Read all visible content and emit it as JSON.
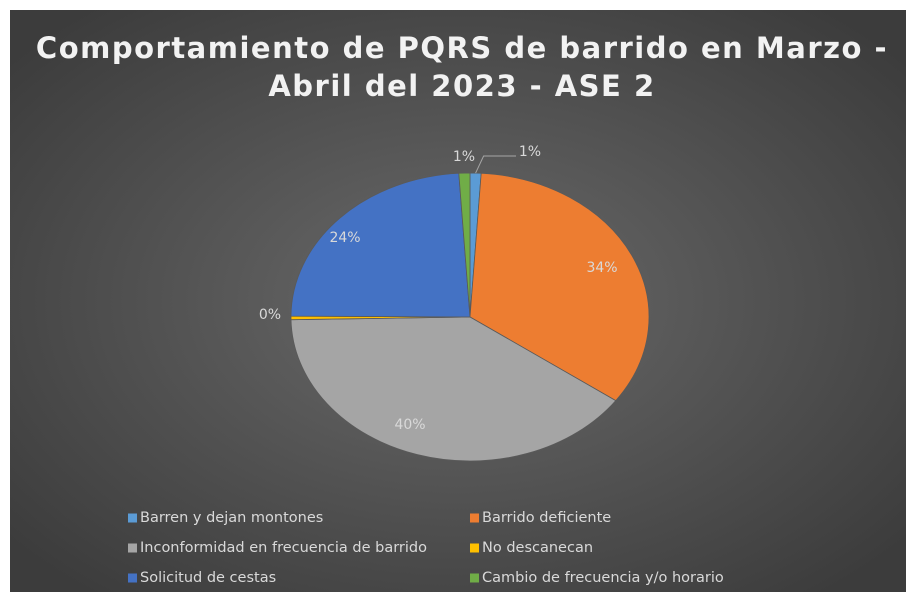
{
  "chart_data": {
    "type": "pie",
    "title": [
      "Comportamiento de PQRS de barrido en Marzo -",
      "Abril del 2023 - ASE 2"
    ],
    "categories": [
      "Barren y dejan montones",
      "Barrido deficiente",
      "Inconformidad en frecuencia de barrido",
      "No descanecan",
      "Solicitud de cestas",
      "Cambio de frecuencia y/o horario"
    ],
    "values": [
      1,
      34,
      40,
      0.4,
      24,
      1
    ],
    "value_labels": [
      "1%",
      "34%",
      "40%",
      "0%",
      "24%",
      "1%"
    ],
    "colors": [
      "#5b9bd5",
      "#ed7d31",
      "#a5a5a5",
      "#ffc000",
      "#4472c4",
      "#70ad47"
    ],
    "legend": "bottom"
  }
}
